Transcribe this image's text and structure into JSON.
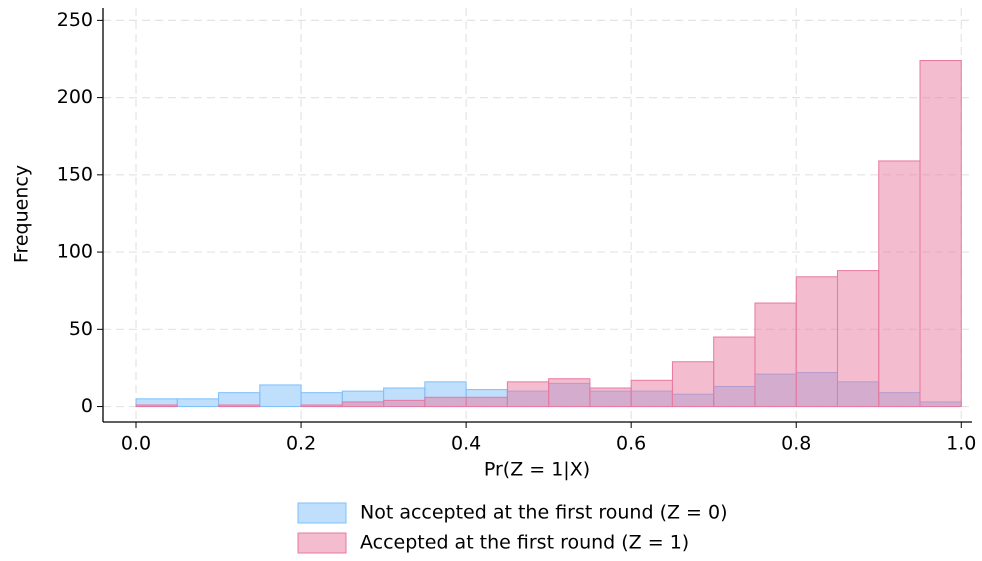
{
  "chart_data": {
    "type": "histogram",
    "xlabel": "Pr(Z = 1|X)",
    "ylabel": "Frequency",
    "bins": [
      0,
      0.05,
      0.1,
      0.15,
      0.2,
      0.25,
      0.3,
      0.35,
      0.4,
      0.45,
      0.5,
      0.55,
      0.6,
      0.65,
      0.7,
      0.75,
      0.8,
      0.85,
      0.9,
      0.95,
      1.0
    ],
    "series": [
      {
        "name": "Not accepted at the first round (Z = 0)",
        "color": "#7fbffb",
        "values": [
          5,
          5,
          9,
          14,
          9,
          10,
          12,
          16,
          11,
          10,
          15,
          10,
          10,
          8,
          13,
          21,
          22,
          16,
          9,
          3
        ]
      },
      {
        "name": "Accepted at the first round (Z = 1)",
        "color": "#e8799f",
        "values": [
          1,
          0,
          1,
          0,
          1,
          3,
          4,
          6,
          6,
          16,
          18,
          12,
          17,
          29,
          45,
          67,
          84,
          88,
          159,
          224
        ]
      }
    ],
    "xlim": [
      -0.04,
      1.013
    ],
    "ylim": [
      -10,
      258
    ],
    "xticks": [
      {
        "value": 0,
        "label": "0.0"
      },
      0.2,
      0.4,
      0.6,
      0.8,
      {
        "value": 1,
        "label": "1.0"
      }
    ],
    "yticks": [
      0,
      50,
      100,
      150,
      200,
      250
    ],
    "grid": true
  }
}
